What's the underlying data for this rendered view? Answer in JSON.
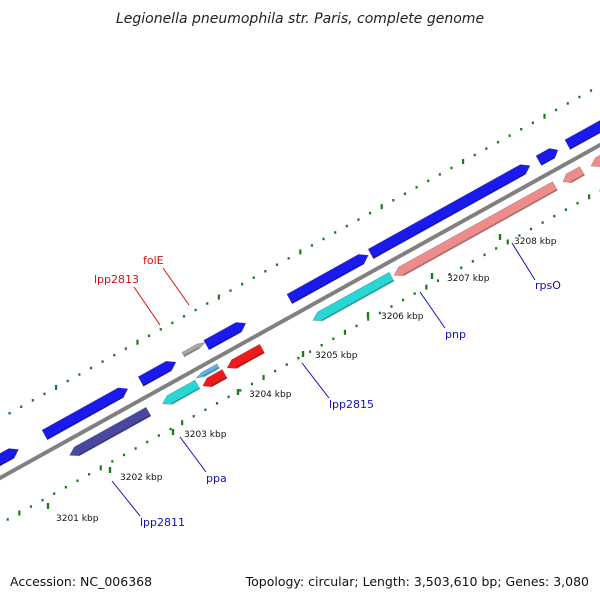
{
  "title": "Legionella pneumophila str. Paris, complete genome",
  "footer": {
    "accession": "Accession: NC_006368",
    "stats": "Topology: circular; Length: 3,503,610 bp; Genes: 3,080"
  },
  "colors": {
    "backbone": "#808080",
    "tick": "#1e7a1e",
    "label_forward": "#d01010",
    "label_reverse": "#1010b8",
    "gene_blue": "#1a1aee",
    "gene_red": "#ee1a1a",
    "gene_pink": "#ee8c8c",
    "gene_cyan": "#28d6d6",
    "gene_navy": "#4848a0",
    "gene_grey": "#a8a8a8",
    "gene_light_blue": "#5cb4e8"
  },
  "position_ticks": [
    {
      "label": "3201 kbp"
    },
    {
      "label": "3202 kbp"
    },
    {
      "label": "3203 kbp"
    },
    {
      "label": "3204 kbp"
    },
    {
      "label": "3205 kbp"
    },
    {
      "label": "3206 kbp"
    },
    {
      "label": "3207 kbp"
    },
    {
      "label": "3208 kbp"
    }
  ],
  "gene_labels": [
    {
      "label": "lpp2813",
      "strand": "forward"
    },
    {
      "label": "folE",
      "strand": "forward"
    },
    {
      "label": "lpp2811",
      "strand": "reverse"
    },
    {
      "label": "ppa",
      "strand": "reverse"
    },
    {
      "label": "lpp2815",
      "strand": "reverse"
    },
    {
      "label": "pnp",
      "strand": "reverse"
    },
    {
      "label": "rpsO",
      "strand": "reverse"
    }
  ],
  "features": [
    {
      "id": "fwd-a",
      "strand": "forward",
      "color": "gene_blue"
    },
    {
      "id": "fwd-b",
      "strand": "forward",
      "color": "gene_blue"
    },
    {
      "id": "fwd-c",
      "strand": "forward",
      "color": "gene_blue"
    },
    {
      "id": "fwd-d",
      "strand": "forward",
      "color": "gene_grey"
    },
    {
      "id": "fwd-e",
      "strand": "forward",
      "color": "gene_blue"
    },
    {
      "id": "fwd-f",
      "strand": "forward",
      "color": "gene_blue"
    },
    {
      "id": "fwd-g",
      "strand": "forward",
      "color": "gene_blue"
    },
    {
      "id": "fwd-h",
      "strand": "forward",
      "color": "gene_blue"
    },
    {
      "id": "fwd-i",
      "strand": "forward",
      "color": "gene_blue"
    },
    {
      "id": "fwd-j",
      "strand": "forward",
      "color": "gene_blue"
    },
    {
      "id": "rev-a",
      "strand": "reverse",
      "color": "gene_navy"
    },
    {
      "id": "rev-b",
      "strand": "reverse",
      "color": "gene_cyan"
    },
    {
      "id": "rev-c",
      "strand": "reverse",
      "color": "gene_light_blue"
    },
    {
      "id": "rev-d",
      "strand": "reverse",
      "color": "gene_red"
    },
    {
      "id": "rev-e",
      "strand": "reverse",
      "color": "gene_red"
    },
    {
      "id": "rev-f",
      "strand": "reverse",
      "color": "gene_cyan"
    },
    {
      "id": "rev-g",
      "strand": "reverse",
      "color": "gene_pink"
    },
    {
      "id": "rev-h",
      "strand": "reverse",
      "color": "gene_pink"
    },
    {
      "id": "rev-i",
      "strand": "reverse",
      "color": "gene_pink"
    }
  ]
}
